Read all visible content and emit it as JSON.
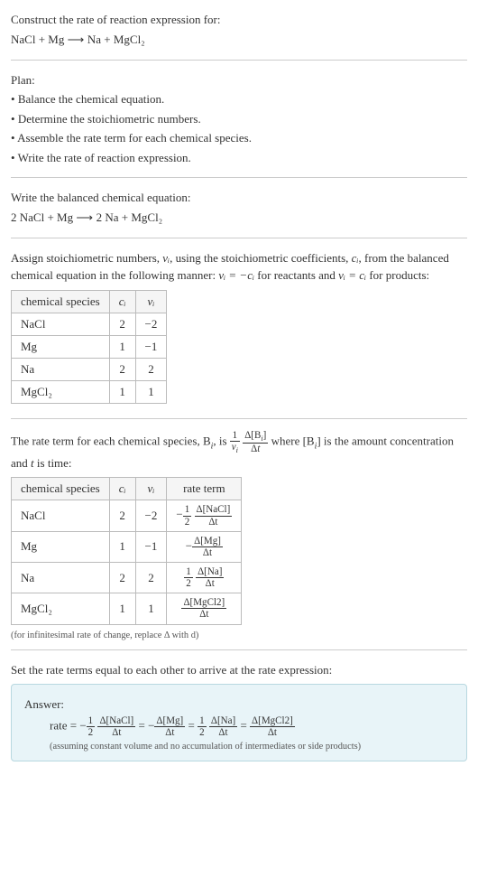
{
  "prompt": {
    "title": "Construct the rate of reaction expression for:",
    "equation_lhs": "NaCl + Mg",
    "equation_rhs": "Na + MgCl₂"
  },
  "plan": {
    "heading": "Plan:",
    "items": [
      "Balance the chemical equation.",
      "Determine the stoichiometric numbers.",
      "Assemble the rate term for each chemical species.",
      "Write the rate of reaction expression."
    ]
  },
  "balanced": {
    "heading": "Write the balanced chemical equation:",
    "lhs": "2 NaCl + Mg",
    "rhs": "2 Na + MgCl₂"
  },
  "stoich": {
    "text1": "Assign stoichiometric numbers, ",
    "text2": ", using the stoichiometric coefficients, ",
    "text3": ", from the balanced chemical equation in the following manner: ",
    "text4": " for reactants and ",
    "text5": " for products:",
    "nu_i": "νᵢ",
    "c_i": "cᵢ",
    "rel_reactant": "νᵢ = −cᵢ",
    "rel_product": "νᵢ = cᵢ",
    "headers": [
      "chemical species",
      "cᵢ",
      "νᵢ"
    ],
    "rows": [
      [
        "NaCl",
        "2",
        "−2"
      ],
      [
        "Mg",
        "1",
        "−1"
      ],
      [
        "Na",
        "2",
        "2"
      ],
      [
        "MgCl₂",
        "1",
        "1"
      ]
    ]
  },
  "rateterm": {
    "text1": "The rate term for each chemical species, B",
    "text2": ", is ",
    "text3": " where [B",
    "text4": "] is the amount concentration and ",
    "text5": " is time:",
    "i": "i",
    "t": "t",
    "headers": [
      "chemical species",
      "cᵢ",
      "νᵢ",
      "rate term"
    ],
    "rows": [
      {
        "sp": "NaCl",
        "c": "2",
        "nu": "−2",
        "neg": "−",
        "fnum1": "1",
        "fden1": "2",
        "fnum2": "Δ[NaCl]",
        "fden2": "Δt"
      },
      {
        "sp": "Mg",
        "c": "1",
        "nu": "−1",
        "neg": "−",
        "fnum1": "",
        "fden1": "",
        "fnum2": "Δ[Mg]",
        "fden2": "Δt"
      },
      {
        "sp": "Na",
        "c": "2",
        "nu": "2",
        "neg": "",
        "fnum1": "1",
        "fden1": "2",
        "fnum2": "Δ[Na]",
        "fden2": "Δt"
      },
      {
        "sp": "MgCl₂",
        "c": "1",
        "nu": "1",
        "neg": "",
        "fnum1": "",
        "fden1": "",
        "fnum2": "Δ[MgCl2]",
        "fden2": "Δt"
      }
    ],
    "hint": "(for infinitesimal rate of change, replace Δ with d)"
  },
  "final": {
    "heading": "Set the rate terms equal to each other to arrive at the rate expression:",
    "answer_label": "Answer:",
    "rate_label": "rate = ",
    "neg": "−",
    "eq": " = ",
    "t1_num1": "1",
    "t1_den1": "2",
    "t1_num2": "Δ[NaCl]",
    "t1_den2": "Δt",
    "t2_num2": "Δ[Mg]",
    "t2_den2": "Δt",
    "t3_num1": "1",
    "t3_den1": "2",
    "t3_num2": "Δ[Na]",
    "t3_den2": "Δt",
    "t4_num2": "Δ[MgCl2]",
    "t4_den2": "Δt",
    "assumption": "(assuming constant volume and no accumulation of intermediates or side products)"
  }
}
